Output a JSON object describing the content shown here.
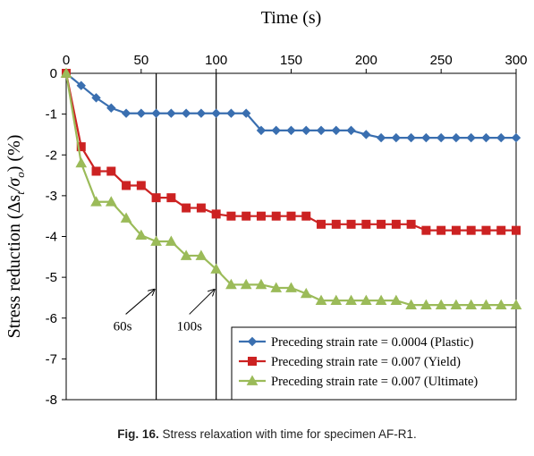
{
  "chart_data": {
    "type": "line",
    "title": "Time (s)",
    "xlabel": "Time (s)",
    "ylabel": "Stress reduction (Δs",
    "ylabel_sub": "t",
    "ylabel_mid": "/σ",
    "ylabel_sub2": "o",
    "ylabel_end": ") (%)",
    "xlim": [
      0,
      300
    ],
    "ylim": [
      -8,
      0
    ],
    "xticks": [
      0,
      50,
      100,
      150,
      200,
      250,
      300
    ],
    "yticks": [
      0,
      -1,
      -2,
      -3,
      -4,
      -5,
      -6,
      -7,
      -8
    ],
    "grid": false,
    "legend_position": "bottom-right",
    "series": [
      {
        "name": "Preceding strain rate = 0.0004 (Plastic)",
        "color": "#3a6fb0",
        "marker": "diamond",
        "points": [
          [
            0,
            0
          ],
          [
            10,
            -0.3
          ],
          [
            20,
            -0.6
          ],
          [
            30,
            -0.85
          ],
          [
            40,
            -0.98
          ],
          [
            50,
            -0.98
          ],
          [
            60,
            -0.98
          ],
          [
            70,
            -0.98
          ],
          [
            80,
            -0.98
          ],
          [
            90,
            -0.98
          ],
          [
            100,
            -0.98
          ],
          [
            110,
            -0.98
          ],
          [
            120,
            -0.98
          ],
          [
            130,
            -1.4
          ],
          [
            140,
            -1.4
          ],
          [
            150,
            -1.4
          ],
          [
            160,
            -1.4
          ],
          [
            170,
            -1.4
          ],
          [
            180,
            -1.4
          ],
          [
            190,
            -1.4
          ],
          [
            200,
            -1.5
          ],
          [
            210,
            -1.58
          ],
          [
            220,
            -1.58
          ],
          [
            230,
            -1.58
          ],
          [
            240,
            -1.58
          ],
          [
            250,
            -1.58
          ],
          [
            260,
            -1.58
          ],
          [
            270,
            -1.58
          ],
          [
            280,
            -1.58
          ],
          [
            290,
            -1.58
          ],
          [
            300,
            -1.58
          ]
        ]
      },
      {
        "name": "Preceding strain rate = 0.007 (Yield)",
        "color": "#cc2222",
        "marker": "square",
        "points": [
          [
            0,
            0
          ],
          [
            10,
            -1.8
          ],
          [
            20,
            -2.4
          ],
          [
            30,
            -2.4
          ],
          [
            40,
            -2.75
          ],
          [
            50,
            -2.75
          ],
          [
            60,
            -3.05
          ],
          [
            70,
            -3.05
          ],
          [
            80,
            -3.3
          ],
          [
            90,
            -3.3
          ],
          [
            100,
            -3.45
          ],
          [
            110,
            -3.5
          ],
          [
            120,
            -3.5
          ],
          [
            130,
            -3.5
          ],
          [
            140,
            -3.5
          ],
          [
            150,
            -3.5
          ],
          [
            160,
            -3.5
          ],
          [
            170,
            -3.7
          ],
          [
            180,
            -3.7
          ],
          [
            190,
            -3.7
          ],
          [
            200,
            -3.7
          ],
          [
            210,
            -3.7
          ],
          [
            220,
            -3.7
          ],
          [
            230,
            -3.7
          ],
          [
            240,
            -3.85
          ],
          [
            250,
            -3.85
          ],
          [
            260,
            -3.85
          ],
          [
            270,
            -3.85
          ],
          [
            280,
            -3.85
          ],
          [
            290,
            -3.85
          ],
          [
            300,
            -3.85
          ]
        ]
      },
      {
        "name": "Preceding strain rate = 0.007 (Ultimate)",
        "color": "#9bbb59",
        "marker": "triangle",
        "points": [
          [
            0,
            0
          ],
          [
            10,
            -2.2
          ],
          [
            20,
            -3.15
          ],
          [
            30,
            -3.15
          ],
          [
            40,
            -3.55
          ],
          [
            50,
            -3.97
          ],
          [
            60,
            -4.12
          ],
          [
            70,
            -4.12
          ],
          [
            80,
            -4.47
          ],
          [
            90,
            -4.47
          ],
          [
            100,
            -4.8
          ],
          [
            110,
            -5.18
          ],
          [
            120,
            -5.18
          ],
          [
            130,
            -5.18
          ],
          [
            140,
            -5.26
          ],
          [
            150,
            -5.26
          ],
          [
            160,
            -5.4
          ],
          [
            170,
            -5.57
          ],
          [
            180,
            -5.57
          ],
          [
            190,
            -5.57
          ],
          [
            200,
            -5.57
          ],
          [
            210,
            -5.57
          ],
          [
            220,
            -5.57
          ],
          [
            230,
            -5.68
          ],
          [
            240,
            -5.68
          ],
          [
            250,
            -5.68
          ],
          [
            260,
            -5.68
          ],
          [
            270,
            -5.68
          ],
          [
            280,
            -5.68
          ],
          [
            290,
            -5.68
          ],
          [
            300,
            -5.68
          ]
        ]
      }
    ],
    "vlines": [
      60,
      100
    ],
    "annotations": [
      {
        "text": "60s",
        "x": 60,
        "y": -5.6
      },
      {
        "text": "100s",
        "x": 100,
        "y": -5.6
      }
    ]
  },
  "caption": {
    "label": "Fig. 16.",
    "text": " Stress relaxation with time for specimen AF-R1."
  }
}
